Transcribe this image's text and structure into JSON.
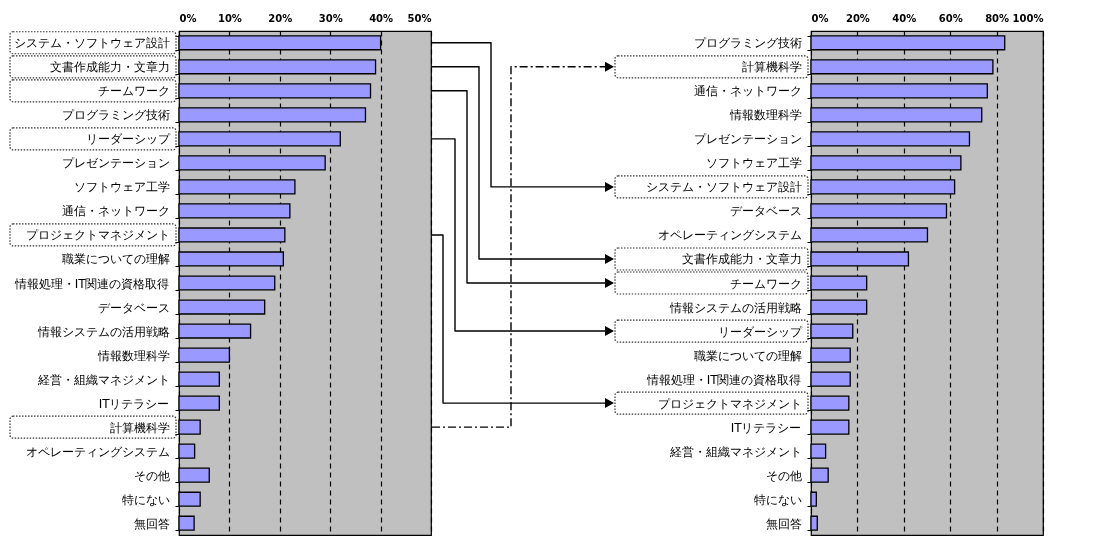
{
  "chart_data": [
    {
      "type": "bar",
      "orientation": "horizontal",
      "categories": [
        "システム・ソフトウェア設計",
        "文書作成能力・文章力",
        "チームワーク",
        "プログラミング技術",
        "リーダーシップ",
        "プレゼンテーション",
        "ソフトウェア工学",
        "通信・ネットワーク",
        "プロジェクトマネジメント",
        "職業についての理解",
        "情報処理・IT関連の資格取得",
        "データベース",
        "情報システムの活用戦略",
        "情報数理科学",
        "経営・組織マネジメント",
        "ITリテラシー",
        "計算機科学",
        "オペレーティングシステム",
        "その他",
        "特にない",
        "無回答"
      ],
      "values": [
        40,
        39,
        38,
        37,
        32,
        29,
        23,
        22,
        21,
        20.7,
        19,
        17,
        14.2,
        10,
        8,
        8,
        4.2,
        3.1,
        6,
        4.2,
        3
      ],
      "color": "#9999ff",
      "xlim": [
        0,
        50
      ],
      "xticks": [
        {
          "value": 0,
          "label": "0%"
        },
        {
          "value": 10,
          "label": "10%"
        },
        {
          "value": 20,
          "label": "20%"
        },
        {
          "value": 30,
          "label": "30%"
        },
        {
          "value": 40,
          "label": "40%"
        },
        {
          "value": 50,
          "label": "50%"
        }
      ],
      "grid": "x"
    },
    {
      "type": "bar",
      "orientation": "horizontal",
      "categories": [
        "プログラミング技術",
        "計算機科学",
        "通信・ネットワーク",
        "情報数理科学",
        "プレゼンテーション",
        "ソフトウェア工学",
        "システム・ソフトウェア設計",
        "データベース",
        "オペレーティングシステム",
        "文書作成能力・文章力",
        "チームワーク",
        "情報システムの活用戦略",
        "リーダーシップ",
        "職業についての理解",
        "情報処理・IT関連の資格取得",
        "プロジェクトマネジメント",
        "ITリテラシー",
        "経営・組織マネジメント",
        "その他",
        "特にない",
        "無回答"
      ],
      "values": [
        83.5,
        78.4,
        76,
        73.6,
        68.3,
        64.6,
        61.9,
        58.4,
        50.2,
        42,
        24,
        24,
        18,
        16.9,
        16.9,
        16.3,
        16.3,
        6.3,
        7.4,
        2.3,
        2.7
      ],
      "color": "#9999ff",
      "xlim": [
        0,
        100
      ],
      "xticks": [
        {
          "value": 0,
          "label": "0%"
        },
        {
          "value": 20,
          "label": "20%"
        },
        {
          "value": 40,
          "label": "40%"
        },
        {
          "value": 60,
          "label": "60%"
        },
        {
          "value": 80,
          "label": "80%"
        },
        {
          "value": 100,
          "label": "100%"
        }
      ],
      "grid": "x"
    }
  ]
}
